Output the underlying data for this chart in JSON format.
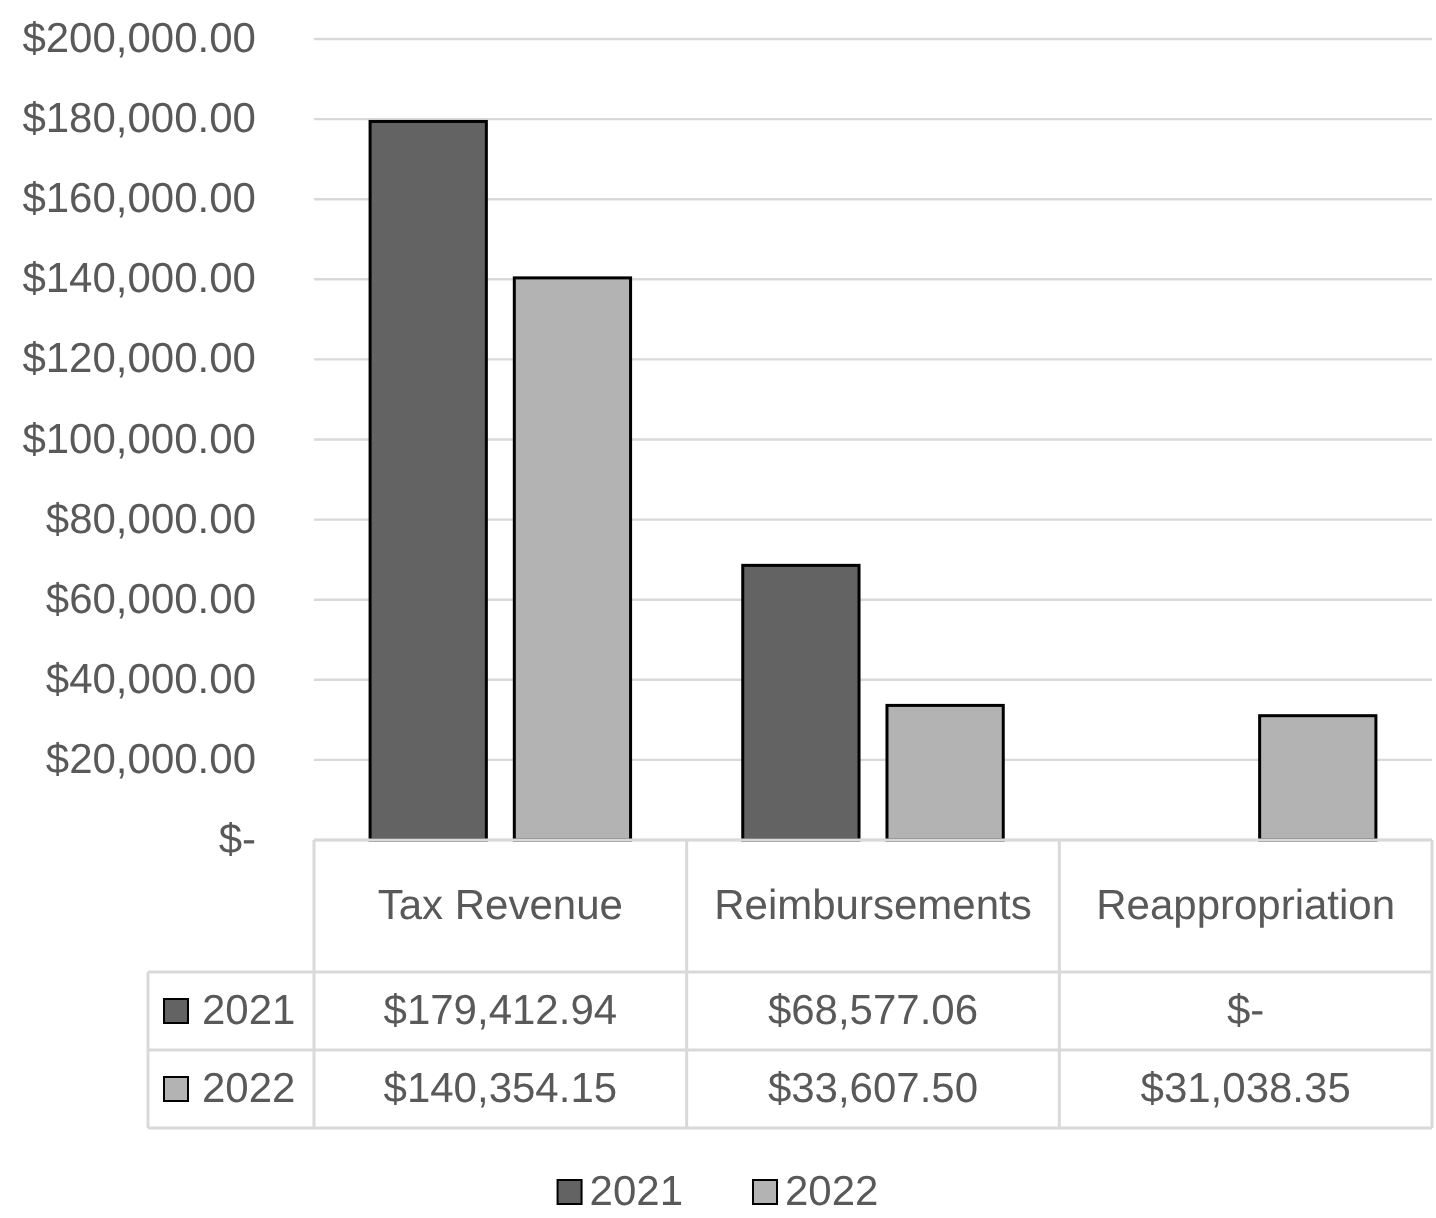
{
  "chart_data": {
    "type": "bar",
    "categories": [
      "Tax Revenue",
      "Reimbursements",
      "Reappropriation"
    ],
    "series": [
      {
        "name": "2021",
        "color": "#636363",
        "values": [
          179412.94,
          68577.06,
          0
        ],
        "value_labels": [
          "$179,412.94",
          "$68,577.06",
          "$-"
        ]
      },
      {
        "name": "2022",
        "color": "#b3b3b3",
        "values": [
          140354.15,
          33607.5,
          31038.35
        ],
        "value_labels": [
          "$140,354.15",
          "$33,607.50",
          "$31,038.35"
        ]
      }
    ],
    "ylim": [
      0,
      200000
    ],
    "yticks": [
      {
        "value": 0,
        "label": "$-"
      },
      {
        "value": 20000,
        "label": "$20,000.00"
      },
      {
        "value": 40000,
        "label": "$40,000.00"
      },
      {
        "value": 60000,
        "label": "$60,000.00"
      },
      {
        "value": 80000,
        "label": "$80,000.00"
      },
      {
        "value": 100000,
        "label": "$100,000.00"
      },
      {
        "value": 120000,
        "label": "$120,000.00"
      },
      {
        "value": 140000,
        "label": "$140,000.00"
      },
      {
        "value": 160000,
        "label": "$160,000.00"
      },
      {
        "value": 180000,
        "label": "$180,000.00"
      },
      {
        "value": 200000,
        "label": "$200,000.00"
      }
    ],
    "grid": "y",
    "legend": "bottom"
  }
}
